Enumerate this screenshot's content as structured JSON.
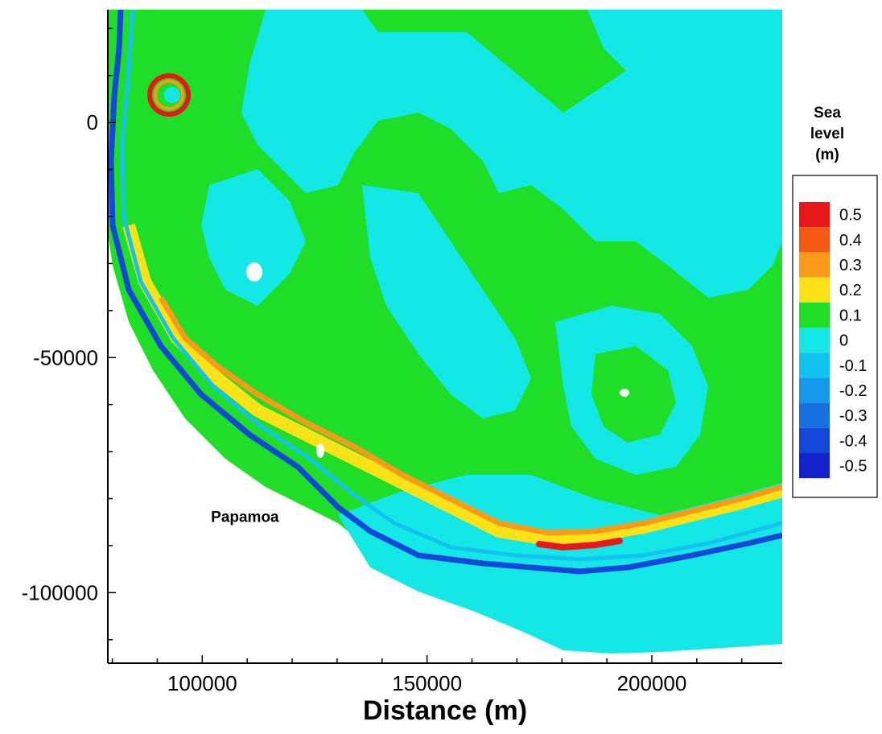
{
  "chart_data": {
    "type": "heatmap",
    "title": "",
    "xlabel": "Distance (m)",
    "ylabel": "",
    "xlim": [
      79000,
      229000
    ],
    "ylim": [
      -115000,
      24000
    ],
    "x_ticks": [
      100000,
      150000,
      200000
    ],
    "x_tick_labels": [
      "100000",
      "150000",
      "200000"
    ],
    "y_ticks": [
      0,
      -50000,
      -100000
    ],
    "y_tick_labels": [
      "0",
      "-50000",
      "-100000"
    ],
    "grid": false,
    "legend": {
      "title_lines": [
        "Sea",
        "level",
        "(m)"
      ],
      "placement": "right",
      "levels": [
        {
          "label": "0.5",
          "value": 0.5,
          "color": "#e8171a"
        },
        {
          "label": "0.4",
          "value": 0.4,
          "color": "#f45a13"
        },
        {
          "label": "0.3",
          "value": 0.3,
          "color": "#fa9a18"
        },
        {
          "label": "0.2",
          "value": 0.2,
          "color": "#fde218"
        },
        {
          "label": "0.1",
          "value": 0.1,
          "color": "#1fde27"
        },
        {
          "label": "0",
          "value": 0.0,
          "color": "#13e8e6"
        },
        {
          "label": "-0.1",
          "value": -0.1,
          "color": "#12c3ef"
        },
        {
          "label": "-0.2",
          "value": -0.2,
          "color": "#1699ea"
        },
        {
          "label": "-0.3",
          "value": -0.3,
          "color": "#1670e0"
        },
        {
          "label": "-0.4",
          "value": -0.4,
          "color": "#1548d8"
        },
        {
          "label": "-0.5",
          "value": -0.5,
          "color": "#1422cc"
        }
      ]
    },
    "annotations": [
      {
        "text": "Papamoa",
        "x": 109500,
        "y": -85000
      }
    ],
    "background_color": "#1fde27"
  }
}
